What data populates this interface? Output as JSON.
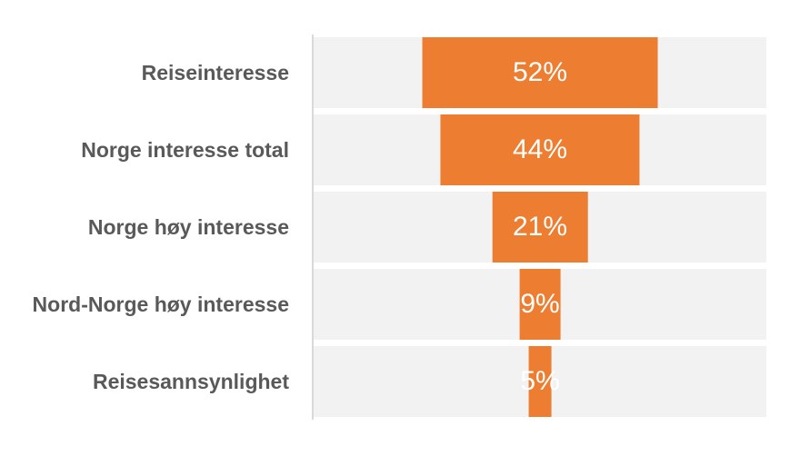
{
  "chart_data": {
    "type": "bar",
    "subtype": "centered-horizontal-funnel",
    "title": "",
    "xlabel": "",
    "ylabel": "",
    "xlim": [
      0,
      100
    ],
    "grid": false,
    "legend": false,
    "categories": [
      "Reiseinteresse",
      "Norge interesse total",
      "Norge høy interesse",
      "Nord-Norge høy interesse",
      "Reisesannsynlighet"
    ],
    "values": [
      52,
      44,
      21,
      9,
      5
    ],
    "value_labels": [
      "52%",
      "44%",
      "21%",
      "9%",
      "5%"
    ],
    "colors": {
      "bar": "#ED7D31",
      "row_background": "#F2F2F2",
      "category_label": "#595959",
      "value_label": "#FFFFFF",
      "axis_line": "#D9D9D9",
      "page_background": "#FFFFFF"
    }
  }
}
